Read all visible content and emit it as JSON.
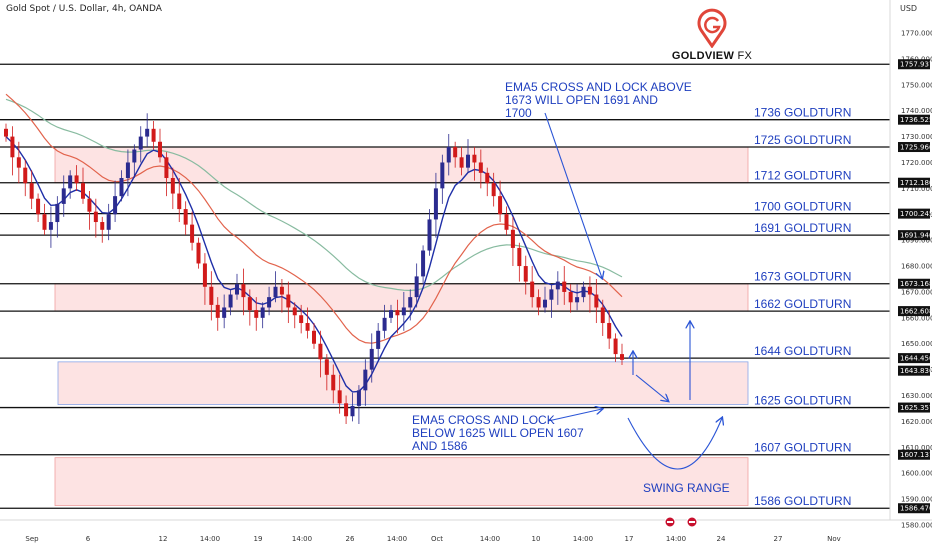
{
  "header": {
    "title": "Gold Spot / U.S. Dollar, 4h, OANDA"
  },
  "axis": {
    "currency": "USD"
  },
  "logo": {
    "brand": "GOLDVIEW",
    "suffix": "FX"
  },
  "colors": {
    "level_line": "#111111",
    "zone_fill": "#fde3e3",
    "zone_border": "#f0a0a0",
    "blue_zone_border": "#8aa6e8",
    "label": "#1f3fbf",
    "candle_up": "#2b2b8f",
    "candle_down": "#d11a1a",
    "ema_fast": "#1f2fa8",
    "ema_mid": "#e2634c",
    "ema_slow": "#88bba0"
  },
  "notes": {
    "ema_up": "EMA5 CROSS AND LOCK ABOVE 1673 WILL OPEN 1691 AND 1700",
    "ema_up_lines": [
      "EMA5 CROSS AND LOCK ABOVE",
      "1673 WILL OPEN 1691 AND",
      "1700"
    ],
    "ema_down_lines": [
      "EMA5 CROSS AND LOCK",
      "BELOW 1625 WILL OPEN 1607",
      "AND 1586"
    ],
    "swing": "SWING RANGE"
  },
  "chart_data": {
    "type": "candlestick",
    "instrument": "Gold Spot / U.S. Dollar",
    "timeframe": "4h",
    "source": "OANDA",
    "ylim": [
      1575,
      1780
    ],
    "y_ticks": [
      1580,
      1590,
      1600,
      1610,
      1620,
      1630,
      1640,
      1650,
      1660,
      1670,
      1680,
      1690,
      1700,
      1710,
      1720,
      1730,
      1740,
      1750,
      1760,
      1770
    ],
    "x_ticks": [
      "Sep",
      "6",
      "12",
      "14:00",
      "19",
      "14:00",
      "26",
      "14:00",
      "Oct",
      "14:00",
      "10",
      "14:00",
      "17",
      "14:00",
      "24",
      "27",
      "Nov"
    ],
    "levels": [
      {
        "price": 1757.937,
        "tag": "1757.937",
        "label": ""
      },
      {
        "price": 1736.525,
        "tag": "1736.525",
        "label": "1736 GOLDTURN"
      },
      {
        "price": 1725.966,
        "tag": "1725.966",
        "label": "1725 GOLDTURN"
      },
      {
        "price": 1712.18,
        "tag": "1712.180",
        "label": "1712 GOLDTURN"
      },
      {
        "price": 1700.245,
        "tag": "1700.245",
        "label": "1700 GOLDTURN"
      },
      {
        "price": 1691.94,
        "tag": "1691.940",
        "label": "1691 GOLDTURN"
      },
      {
        "price": 1673.168,
        "tag": "1673.168",
        "label": "1673 GOLDTURN"
      },
      {
        "price": 1662.608,
        "tag": "1662.608",
        "label": "1662 GOLDTURN"
      },
      {
        "price": 1644.45,
        "tag": "1644.450",
        "label": "1644 GOLDTURN"
      },
      {
        "price": 1625.357,
        "tag": "1625.357",
        "label": "1625 GOLDTURN"
      },
      {
        "price": 1607.131,
        "tag": "1607.131",
        "label": "1607 GOLDTURN"
      },
      {
        "price": 1586.476,
        "tag": "1586.476",
        "label": "1586 GOLDTURN"
      }
    ],
    "current_price": {
      "price": 1643.836,
      "tag": "1643.836"
    },
    "zones": [
      {
        "top": 1725.966,
        "bottom": 1712.18,
        "style": "red"
      },
      {
        "top": 1673.168,
        "bottom": 1662.608,
        "style": "red"
      },
      {
        "top": 1643.0,
        "bottom": 1626.5,
        "style": "blue"
      },
      {
        "top": 1606.0,
        "bottom": 1587.5,
        "style": "red"
      }
    ],
    "prices": [
      1730,
      1722,
      1718,
      1712,
      1706,
      1700,
      1694,
      1697,
      1704,
      1710,
      1715,
      1712,
      1706,
      1701,
      1697,
      1694,
      1700,
      1707,
      1714,
      1720,
      1725,
      1730,
      1733,
      1728,
      1722,
      1714,
      1708,
      1702,
      1696,
      1689,
      1681,
      1672,
      1665,
      1660,
      1664,
      1669,
      1673,
      1668,
      1663,
      1660,
      1664,
      1668,
      1672,
      1669,
      1664,
      1661,
      1658,
      1655,
      1650,
      1644,
      1638,
      1632,
      1627,
      1622,
      1626,
      1632,
      1640,
      1648,
      1655,
      1660,
      1663,
      1661,
      1664,
      1668,
      1676,
      1686,
      1698,
      1710,
      1720,
      1726,
      1722,
      1718,
      1723,
      1720,
      1716,
      1712,
      1707,
      1700,
      1694,
      1687,
      1680,
      1674,
      1668,
      1664,
      1667,
      1671,
      1674,
      1670,
      1666,
      1668,
      1672,
      1669,
      1664,
      1658,
      1652,
      1646,
      1643.8
    ]
  }
}
